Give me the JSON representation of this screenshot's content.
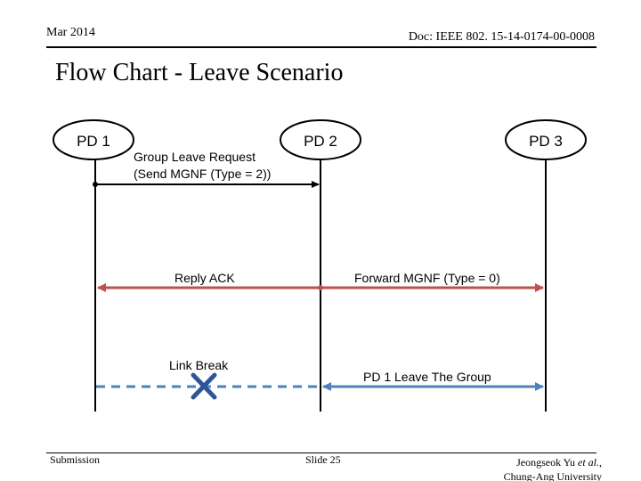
{
  "header": {
    "date": "Mar 2014",
    "doc_id": "Doc: IEEE 802. 15-14-0174-00-0008"
  },
  "title": "Flow Chart - Leave Scenario",
  "nodes": [
    {
      "label": "PD 1"
    },
    {
      "label": "PD 2"
    },
    {
      "label": "PD 3"
    }
  ],
  "messages": {
    "group_leave_line1": "Group Leave Request",
    "group_leave_line2": "(Send MGNF (Type = 2))",
    "reply_ack": "Reply ACK",
    "forward_mgnf": "Forward MGNF (Type = 0)",
    "link_break": "Link Break",
    "leave_group": "PD 1 Leave The Group"
  },
  "colors": {
    "lifeline": "#000000",
    "request_arrow": "#000000",
    "ack_arrow": "#c0504d",
    "break_line": "#4f81bd",
    "break_cross": "#2e5597"
  },
  "footer": {
    "submission": "Submission",
    "slide": "Slide 25",
    "author_line1_prefix": "Jeongseok Yu ",
    "author_line1_etal": "et al.",
    "author_line1_suffix": ",",
    "author_line2": "Chung-Ang University"
  }
}
